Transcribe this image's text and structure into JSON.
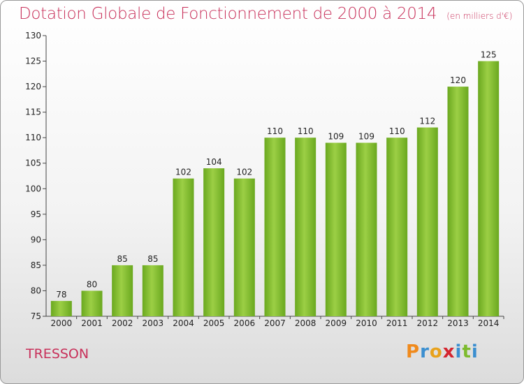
{
  "chart_data": {
    "type": "bar",
    "title": "Dotation Globale de Fonctionnement de 2000 à 2014",
    "subtitle": "(en milliers d'€)",
    "categories": [
      "2000",
      "2001",
      "2002",
      "2003",
      "2004",
      "2005",
      "2006",
      "2007",
      "2008",
      "2009",
      "2010",
      "2011",
      "2012",
      "2013",
      "2014"
    ],
    "values": [
      78,
      80,
      85,
      85,
      102,
      104,
      102,
      110,
      110,
      109,
      109,
      110,
      112,
      120,
      125
    ],
    "ylim": [
      75,
      130
    ],
    "yticks": [
      75,
      80,
      85,
      90,
      95,
      100,
      105,
      110,
      115,
      120,
      125,
      130
    ],
    "grid": false,
    "bar_color": "#7dbb2e",
    "xlabel": "",
    "ylabel": ""
  },
  "footer": {
    "commune": "TRESSON",
    "logo_letters": [
      {
        "ch": "P",
        "color": "#f08a1c"
      },
      {
        "ch": "r",
        "color": "#3b8fd0"
      },
      {
        "ch": "o",
        "color": "#e8a21c"
      },
      {
        "ch": "x",
        "color": "#d4252f"
      },
      {
        "ch": "i",
        "color": "#3b8fd0"
      },
      {
        "ch": "t",
        "color": "#7dbb2e"
      },
      {
        "ch": "i",
        "color": "#3b8fd0"
      }
    ]
  },
  "colors": {
    "title": "#c8305a",
    "text": "#222222"
  }
}
